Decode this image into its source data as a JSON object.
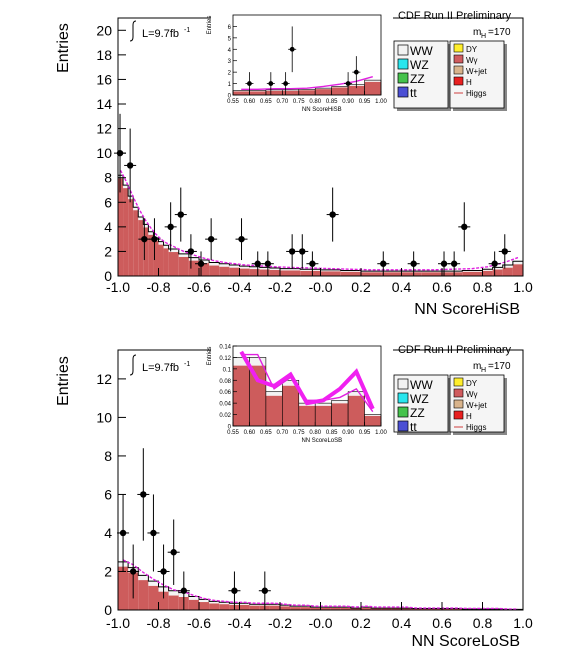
{
  "chart_data": [
    {
      "type": "histogram",
      "xlabel": "NN ScoreHiSB",
      "ylabel": "Entries",
      "xlim": [
        -1.0,
        1.0
      ],
      "ylim": [
        0,
        21
      ],
      "x_ticks": [
        "-1.0",
        "-0.8",
        "-0.6",
        "-0.4",
        "-0.2",
        "-0.0",
        "0.2",
        "0.4",
        "0.6",
        "0.8",
        "1.0"
      ],
      "y_ticks": [
        "0",
        "2",
        "4",
        "6",
        "8",
        "10",
        "12",
        "14",
        "16",
        "18",
        "20"
      ],
      "lumi_label": "L=9.7fb",
      "lumi_sup": "-1",
      "header": "CDF Run II Preliminary",
      "mass_label": "m",
      "mass_sub": "H",
      "mass_value": "=170",
      "legend": [
        {
          "name": "WW",
          "color": "#f2f2f2"
        },
        {
          "name": "WZ",
          "color": "#29e6ee"
        },
        {
          "name": "ZZ",
          "color": "#45c24c"
        },
        {
          "name": "tt",
          "color": "#4b4fd4"
        },
        {
          "name": "DY",
          "color": "#ffee2c"
        },
        {
          "name": "Wγ",
          "color": "#d05c5f"
        },
        {
          "name": "W+jet",
          "color": "#d9b48c"
        },
        {
          "name": "H",
          "color": "#e82020"
        },
        {
          "name": "Higgs",
          "color": "#d04040"
        }
      ],
      "bin_edges": [
        -1.0,
        -0.975,
        -0.95,
        -0.925,
        -0.9,
        -0.875,
        -0.85,
        -0.825,
        -0.8,
        -0.775,
        -0.75,
        -0.7,
        -0.65,
        -0.6,
        -0.55,
        -0.5,
        -0.45,
        -0.4,
        -0.35,
        -0.3,
        -0.25,
        -0.2,
        -0.1,
        0.0,
        0.1,
        0.2,
        0.3,
        0.4,
        0.5,
        0.6,
        0.7,
        0.8,
        0.85,
        0.9,
        0.95,
        1.0
      ],
      "background_total": [
        8.2,
        7.4,
        6.5,
        5.6,
        4.8,
        4.2,
        3.6,
        3.1,
        2.8,
        2.5,
        2.2,
        1.8,
        1.5,
        1.3,
        1.1,
        1.0,
        0.9,
        0.8,
        0.75,
        0.7,
        0.65,
        0.6,
        0.55,
        0.5,
        0.45,
        0.4,
        0.4,
        0.4,
        0.4,
        0.4,
        0.45,
        0.55,
        0.7,
        0.9,
        1.2
      ],
      "signal_total": [
        8.6,
        7.8,
        6.9,
        6.0,
        5.2,
        4.5,
        3.9,
        3.4,
        3.0,
        2.7,
        2.4,
        2.0,
        1.7,
        1.45,
        1.25,
        1.1,
        1.0,
        0.9,
        0.85,
        0.8,
        0.75,
        0.7,
        0.65,
        0.6,
        0.55,
        0.5,
        0.5,
        0.5,
        0.5,
        0.55,
        0.6,
        0.75,
        0.95,
        1.2,
        1.5
      ],
      "data_points": [
        {
          "x": -0.99,
          "y": 10,
          "err": 3.2
        },
        {
          "x": -0.94,
          "y": 9,
          "err": 3.0
        },
        {
          "x": -0.87,
          "y": 3,
          "err": 1.7
        },
        {
          "x": -0.82,
          "y": 3,
          "err": 1.7
        },
        {
          "x": -0.74,
          "y": 4,
          "err": 2.0
        },
        {
          "x": -0.69,
          "y": 5,
          "err": 2.2
        },
        {
          "x": -0.64,
          "y": 2,
          "err": 1.4
        },
        {
          "x": -0.59,
          "y": 1,
          "err": 1.0
        },
        {
          "x": -0.54,
          "y": 3,
          "err": 1.7
        },
        {
          "x": -0.39,
          "y": 3,
          "err": 1.7
        },
        {
          "x": -0.31,
          "y": 1,
          "err": 1.0
        },
        {
          "x": -0.26,
          "y": 1,
          "err": 1.0
        },
        {
          "x": -0.14,
          "y": 2,
          "err": 1.4
        },
        {
          "x": -0.09,
          "y": 2,
          "err": 1.4
        },
        {
          "x": -0.04,
          "y": 1,
          "err": 1.0
        },
        {
          "x": 0.06,
          "y": 5,
          "err": 2.2
        },
        {
          "x": 0.31,
          "y": 1,
          "err": 1.0
        },
        {
          "x": 0.46,
          "y": 1,
          "err": 1.0
        },
        {
          "x": 0.61,
          "y": 1,
          "err": 1.0
        },
        {
          "x": 0.66,
          "y": 1,
          "err": 1.0
        },
        {
          "x": 0.71,
          "y": 4,
          "err": 2.0
        },
        {
          "x": 0.86,
          "y": 1,
          "err": 1.0
        },
        {
          "x": 0.91,
          "y": 2,
          "err": 1.4
        }
      ],
      "inset": {
        "xlabel": "NN ScoreHiSB",
        "ylabel": "Entries",
        "xlim": [
          0.55,
          1.0
        ],
        "ylim": [
          0,
          7
        ],
        "x_ticks": [
          "0.55",
          "0.60",
          "0.65",
          "0.70",
          "0.75",
          "0.80",
          "0.85",
          "0.90",
          "0.95",
          "1.00"
        ],
        "y_ticks": [
          "0",
          "1",
          "2",
          "3",
          "4",
          "5",
          "6"
        ],
        "bin_edges": [
          0.55,
          0.6,
          0.65,
          0.7,
          0.75,
          0.8,
          0.85,
          0.9,
          0.95,
          1.0
        ],
        "background_total": [
          0.4,
          0.4,
          0.45,
          0.45,
          0.5,
          0.6,
          0.75,
          0.9,
          1.3
        ],
        "signal_total": [
          0.5,
          0.5,
          0.55,
          0.55,
          0.6,
          0.75,
          0.95,
          1.2,
          1.6
        ],
        "data_points": [
          {
            "x": 0.6,
            "y": 1,
            "err": 1.0
          },
          {
            "x": 0.665,
            "y": 1,
            "err": 1.0
          },
          {
            "x": 0.71,
            "y": 1,
            "err": 1.0
          },
          {
            "x": 0.73,
            "y": 4,
            "err": 2.0
          },
          {
            "x": 0.9,
            "y": 1,
            "err": 1.0
          },
          {
            "x": 0.925,
            "y": 2,
            "err": 1.4
          }
        ]
      }
    },
    {
      "type": "histogram",
      "xlabel": "NN ScoreLoSB",
      "ylabel": "Entries",
      "xlim": [
        -1.0,
        1.0
      ],
      "ylim": [
        0,
        13.5
      ],
      "x_ticks": [
        "-1.0",
        "-0.8",
        "-0.6",
        "-0.4",
        "-0.2",
        "-0.0",
        "0.2",
        "0.4",
        "0.6",
        "0.8",
        "1.0"
      ],
      "y_ticks": [
        "0",
        "2",
        "4",
        "6",
        "8",
        "10",
        "12"
      ],
      "lumi_label": "L=9.7fb",
      "lumi_sup": "-1",
      "header": "CDF Run II Preliminary",
      "mass_label": "m",
      "mass_sub": "H",
      "mass_value": "=170",
      "legend": [
        {
          "name": "WW",
          "color": "#f2f2f2"
        },
        {
          "name": "WZ",
          "color": "#29e6ee"
        },
        {
          "name": "ZZ",
          "color": "#45c24c"
        },
        {
          "name": "tt",
          "color": "#4b4fd4"
        },
        {
          "name": "DY",
          "color": "#ffee2c"
        },
        {
          "name": "Wγ",
          "color": "#d05c5f"
        },
        {
          "name": "W+jet",
          "color": "#d9b48c"
        },
        {
          "name": "H",
          "color": "#e82020"
        },
        {
          "name": "Higgs",
          "color": "#d04040"
        }
      ],
      "bin_edges": [
        -1.0,
        -0.95,
        -0.9,
        -0.85,
        -0.8,
        -0.75,
        -0.7,
        -0.65,
        -0.6,
        -0.55,
        -0.5,
        -0.45,
        -0.4,
        -0.35,
        -0.3,
        -0.25,
        -0.2,
        -0.15,
        -0.1,
        -0.05,
        0.0,
        0.05,
        0.1,
        0.15,
        0.2,
        0.25,
        0.3,
        0.35,
        0.4,
        0.45,
        0.5,
        0.55,
        0.6,
        0.65,
        0.7,
        0.75,
        0.8,
        0.85,
        0.9,
        0.95,
        1.0
      ],
      "background_total": [
        2.5,
        2.2,
        1.8,
        1.5,
        1.2,
        1.0,
        0.9,
        0.7,
        0.55,
        0.45,
        0.4,
        0.35,
        0.35,
        0.3,
        0.3,
        0.3,
        0.25,
        0.2,
        0.2,
        0.15,
        0.15,
        0.15,
        0.15,
        0.1,
        0.15,
        0.1,
        0.1,
        0.1,
        0.1,
        0.08,
        0.08,
        0.08,
        0.08,
        0.08,
        0.05,
        0.05,
        0.05,
        0.05,
        0.03,
        0.03
      ],
      "signal_total": [
        2.6,
        2.35,
        1.95,
        1.6,
        1.3,
        1.05,
        0.95,
        0.75,
        0.6,
        0.5,
        0.45,
        0.4,
        0.4,
        0.35,
        0.35,
        0.35,
        0.3,
        0.25,
        0.25,
        0.2,
        0.2,
        0.2,
        0.2,
        0.15,
        0.2,
        0.15,
        0.15,
        0.15,
        0.15,
        0.1,
        0.1,
        0.1,
        0.1,
        0.1,
        0.08,
        0.08,
        0.08,
        0.08,
        0.05,
        0.05
      ],
      "data_points": [
        {
          "x": -0.975,
          "y": 4,
          "err": 2.0
        },
        {
          "x": -0.925,
          "y": 2,
          "err": 1.4
        },
        {
          "x": -0.875,
          "y": 6,
          "err": 2.4
        },
        {
          "x": -0.825,
          "y": 4,
          "err": 2.0
        },
        {
          "x": -0.775,
          "y": 2,
          "err": 1.4
        },
        {
          "x": -0.725,
          "y": 3,
          "err": 1.7
        },
        {
          "x": -0.675,
          "y": 1,
          "err": 1.0
        },
        {
          "x": -0.425,
          "y": 1,
          "err": 1.0
        },
        {
          "x": -0.275,
          "y": 1,
          "err": 1.0
        }
      ],
      "inset": {
        "xlabel": "NN ScoreLoSB",
        "ylabel": "Entries",
        "xlim": [
          0.55,
          1.0
        ],
        "ylim": [
          0,
          0.14
        ],
        "x_ticks": [
          "0.55",
          "0.60",
          "0.65",
          "0.70",
          "0.75",
          "0.80",
          "0.85",
          "0.90",
          "0.95",
          "1.00"
        ],
        "y_ticks": [
          "0",
          "0.02",
          "0.04",
          "0.06",
          "0.08",
          "0.1",
          "0.12",
          "0.14"
        ],
        "bin_edges": [
          0.55,
          0.6,
          0.65,
          0.7,
          0.75,
          0.8,
          0.85,
          0.9,
          0.95,
          1.0
        ],
        "background_total": [
          0.12,
          0.12,
          0.06,
          0.08,
          0.04,
          0.04,
          0.045,
          0.06,
          0.02
        ],
        "signal_total": [
          0.125,
          0.125,
          0.065,
          0.085,
          0.045,
          0.045,
          0.05,
          0.065,
          0.025
        ],
        "signal_line": [
          0.13,
          0.08,
          0.07,
          0.09,
          0.04,
          0.045,
          0.065,
          0.095,
          0.03
        ]
      }
    }
  ]
}
